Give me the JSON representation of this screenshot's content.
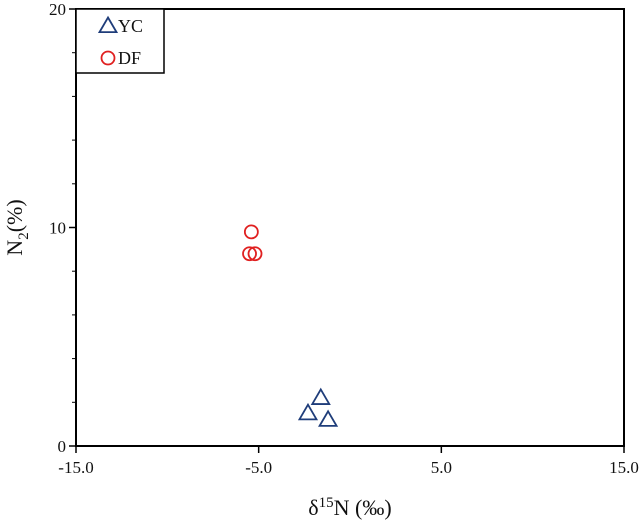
{
  "chart_data": {
    "type": "scatter",
    "title": "",
    "xlabel": {
      "main": "δ",
      "sup": "15",
      "after": "N (‰)"
    },
    "ylabel": {
      "main": "N",
      "sub": "2",
      "after": "(%)"
    },
    "xlim": [
      -15,
      15
    ],
    "ylim": [
      0,
      20
    ],
    "x_ticks": [
      -15,
      -5,
      5,
      15
    ],
    "x_tick_labels": [
      "-15.0",
      "-5.0",
      "5.0",
      "15.0"
    ],
    "y_ticks": [
      0,
      10,
      20
    ],
    "y_tick_labels": [
      "0",
      "10",
      "20"
    ],
    "grid": false,
    "legend_position": "top-left",
    "series": [
      {
        "name": "YC",
        "marker": "triangle",
        "color": "#1f3d7a",
        "points": [
          [
            -1.6,
            2.2
          ],
          [
            -2.3,
            1.5
          ],
          [
            -1.2,
            1.2
          ]
        ]
      },
      {
        "name": "DF",
        "marker": "circle",
        "color": "#e02020",
        "points": [
          [
            -5.4,
            9.8
          ],
          [
            -5.5,
            8.8
          ],
          [
            -5.2,
            8.8
          ]
        ]
      }
    ]
  }
}
